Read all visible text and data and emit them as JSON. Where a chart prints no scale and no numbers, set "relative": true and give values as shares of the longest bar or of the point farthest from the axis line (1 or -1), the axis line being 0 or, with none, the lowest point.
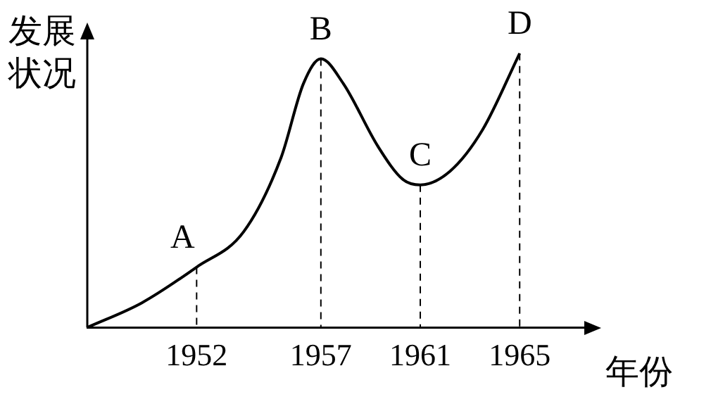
{
  "chart_data": {
    "type": "line",
    "xlabel": "年份",
    "ylabel": "发展状况",
    "relative": true,
    "x": [
      1947.6,
      1949.8,
      1952,
      1953.9,
      1955.4,
      1956.3,
      1957,
      1957.9,
      1959.3,
      1960.3,
      1961,
      1962.2,
      1963.5,
      1965
    ],
    "series": [
      {
        "color": "#000000",
        "values": [
          0,
          0.09,
          0.22,
          0.35,
          0.62,
          0.89,
          0.98,
          0.89,
          0.66,
          0.54,
          0.52,
          0.57,
          0.72,
          1
        ]
      }
    ],
    "xlim": [
      1947.6,
      1967.6
    ],
    "xticks": [
      1952,
      1957,
      1961,
      1965
    ],
    "annotations": [
      {
        "text": "A",
        "x": 1952,
        "y": 0.22
      },
      {
        "text": "B",
        "x": 1957,
        "y": 0.98
      },
      {
        "text": "C",
        "x": 1961,
        "y": 0.52
      },
      {
        "text": "D",
        "x": 1965,
        "y": 1
      }
    ],
    "legend": false,
    "marker": "none",
    "line_style": "solid"
  }
}
